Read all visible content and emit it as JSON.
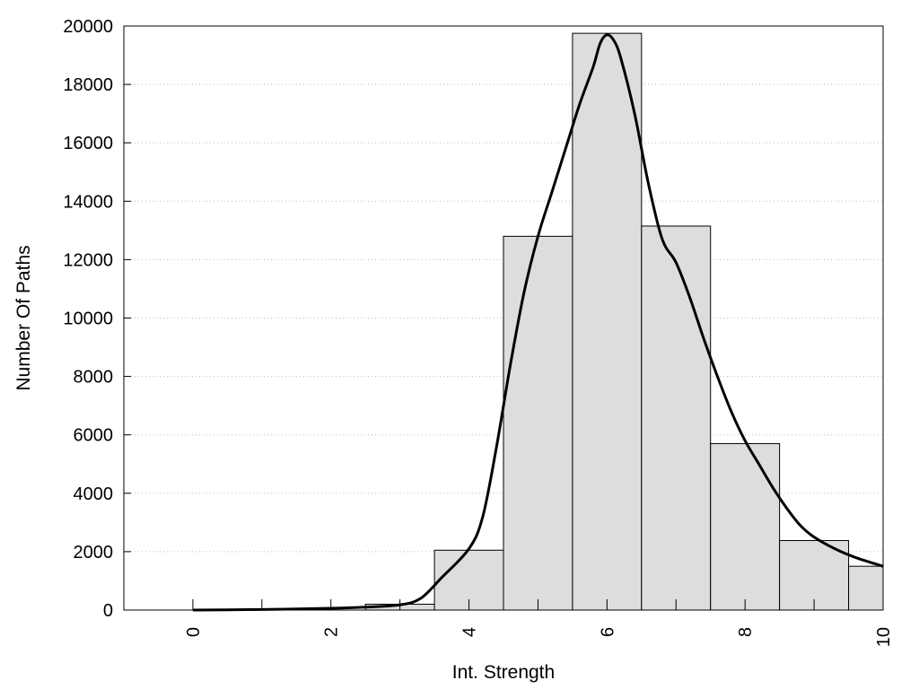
{
  "chart_data": {
    "type": "bar",
    "title": "",
    "xlabel": "Int. Strength",
    "ylabel": "Number Of Paths",
    "xlim": [
      -1,
      10
    ],
    "ylim": [
      0,
      20000
    ],
    "x_ticks": [
      0,
      2,
      4,
      6,
      8,
      10
    ],
    "x_tick_labels": [
      "0",
      "2",
      "4",
      "6",
      "8",
      "10"
    ],
    "y_ticks": [
      0,
      2000,
      4000,
      6000,
      8000,
      10000,
      12000,
      14000,
      16000,
      18000,
      20000
    ],
    "y_tick_labels": [
      "0",
      "2000",
      "4000",
      "6000",
      "8000",
      "10000",
      "12000",
      "14000",
      "16000",
      "18000",
      "20000"
    ],
    "grid": "horizontal-dotted",
    "bar_color": "#dddddd",
    "bar_edge_color": "#000000",
    "curve_color": "#000000",
    "bins": [
      {
        "from": -0.5,
        "to": 0.5,
        "value": 0
      },
      {
        "from": 0.5,
        "to": 1.5,
        "value": 0
      },
      {
        "from": 1.5,
        "to": 2.5,
        "value": 0
      },
      {
        "from": 2.5,
        "to": 3.5,
        "value": 200
      },
      {
        "from": 3.5,
        "to": 4.5,
        "value": 2050
      },
      {
        "from": 4.5,
        "to": 5.5,
        "value": 12800
      },
      {
        "from": 5.5,
        "to": 6.5,
        "value": 19750
      },
      {
        "from": 6.5,
        "to": 7.5,
        "value": 13150
      },
      {
        "from": 7.5,
        "to": 8.5,
        "value": 5700
      },
      {
        "from": 8.5,
        "to": 9.5,
        "value": 2380
      },
      {
        "from": 9.5,
        "to": 10,
        "value": 1500
      }
    ],
    "curve": {
      "x": [
        0,
        1,
        2,
        2.5,
        3,
        3.3,
        3.6,
        4,
        4.2,
        4.4,
        4.6,
        4.8,
        5,
        5.2,
        5.4,
        5.6,
        5.8,
        5.9,
        6,
        6.1,
        6.2,
        6.4,
        6.6,
        6.8,
        7,
        7.2,
        7.4,
        7.6,
        7.8,
        8,
        8.2,
        8.4,
        8.6,
        8.8,
        9,
        9.3,
        9.6,
        10
      ],
      "y": [
        0,
        20,
        60,
        100,
        180,
        400,
        1100,
        2100,
        3200,
        5600,
        8400,
        10900,
        12800,
        14300,
        15800,
        17300,
        18600,
        19400,
        19700,
        19500,
        18900,
        17000,
        14600,
        12700,
        11900,
        10700,
        9300,
        8000,
        6800,
        5800,
        5000,
        4200,
        3500,
        2900,
        2500,
        2100,
        1800,
        1500
      ]
    }
  }
}
